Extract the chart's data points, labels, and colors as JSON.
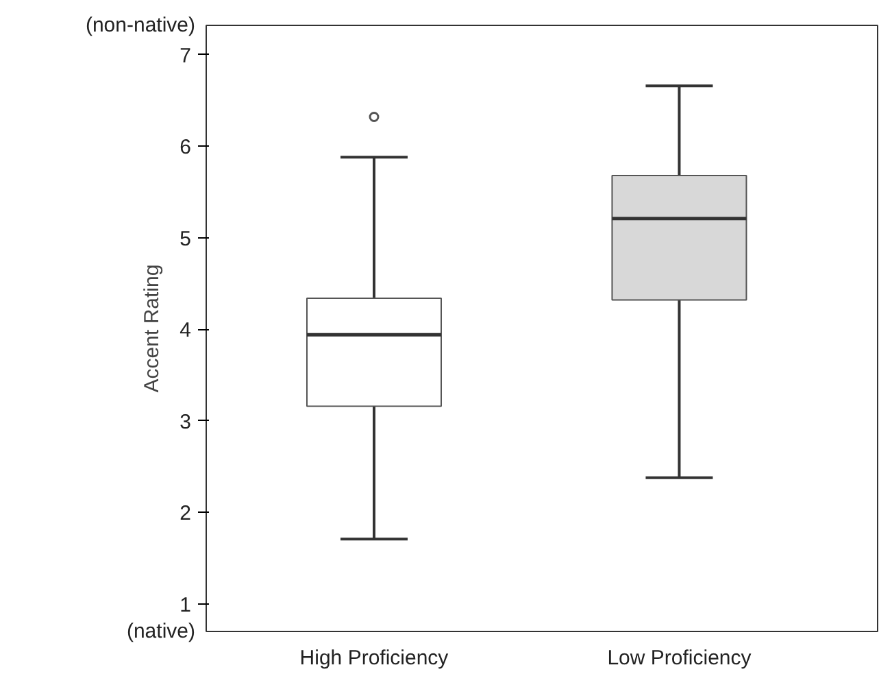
{
  "chart_data": {
    "type": "box",
    "ylabel": "Accent Rating",
    "categories": [
      "High Proficiency",
      "Low Proficiency"
    ],
    "boxes": [
      {
        "low": 1.71,
        "q1": 3.16,
        "median": 3.94,
        "q3": 4.34,
        "high": 5.88,
        "outliers": [
          6.32
        ]
      },
      {
        "low": 2.38,
        "q1": 4.32,
        "median": 5.21,
        "q3": 5.68,
        "high": 6.66
      }
    ],
    "colors": [
      "#ffffff",
      "#d8d8d8"
    ],
    "ylim": [
      0.7,
      7.32
    ],
    "yticks": [
      1,
      2,
      3,
      4,
      5,
      6,
      7
    ],
    "grid": false,
    "annotations": [
      "(non-native)",
      "(native)"
    ]
  }
}
